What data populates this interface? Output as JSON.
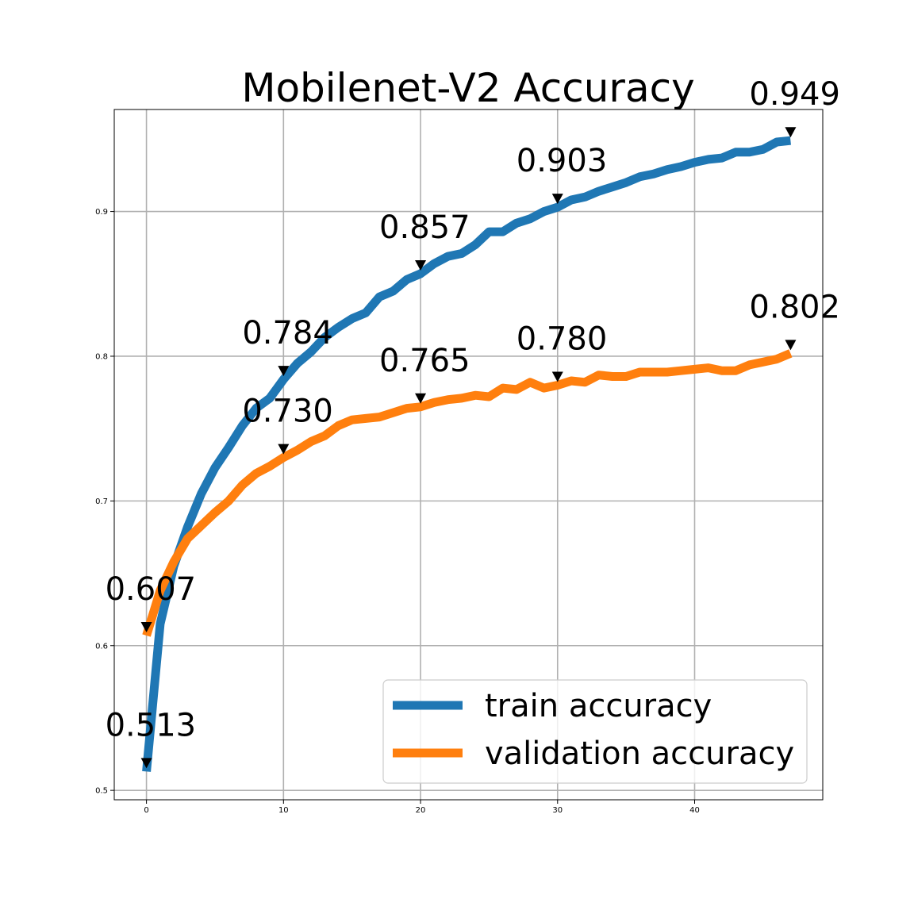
{
  "chart_data": {
    "type": "line",
    "title": "Mobilenet-V2 Accuracy",
    "xlabel": "",
    "ylabel": "",
    "xlim": [
      -2.35,
      49.35
    ],
    "ylim": [
      0.4935,
      0.9705
    ],
    "xticks": [
      0,
      10,
      20,
      30,
      40
    ],
    "xtick_labels": [
      "0",
      "10",
      "20",
      "30",
      "40"
    ],
    "yticks": [
      0.5,
      0.6,
      0.7,
      0.8,
      0.9
    ],
    "ytick_labels": [
      "0.5",
      "0.6",
      "0.7",
      "0.8",
      "0.9"
    ],
    "grid": true,
    "legend_position": "lower-right",
    "x": [
      0,
      1,
      2,
      3,
      4,
      5,
      6,
      7,
      8,
      9,
      10,
      11,
      12,
      13,
      14,
      15,
      16,
      17,
      18,
      19,
      20,
      21,
      22,
      23,
      24,
      25,
      26,
      27,
      28,
      29,
      30,
      31,
      32,
      33,
      34,
      35,
      36,
      37,
      38,
      39,
      40,
      41,
      42,
      43,
      44,
      45,
      46,
      47
    ],
    "series": [
      {
        "name": "train accuracy",
        "color": "#1f77b4",
        "values": [
          0.513,
          0.615,
          0.655,
          0.682,
          0.705,
          0.723,
          0.737,
          0.752,
          0.764,
          0.771,
          0.784,
          0.795,
          0.803,
          0.813,
          0.82,
          0.826,
          0.83,
          0.841,
          0.845,
          0.853,
          0.857,
          0.864,
          0.869,
          0.871,
          0.877,
          0.886,
          0.886,
          0.892,
          0.895,
          0.9,
          0.903,
          0.908,
          0.91,
          0.914,
          0.917,
          0.92,
          0.924,
          0.926,
          0.929,
          0.931,
          0.934,
          0.936,
          0.937,
          0.941,
          0.941,
          0.943,
          0.948,
          0.949
        ]
      },
      {
        "name": "validation accuracy",
        "color": "#ff7f0e",
        "values": [
          0.607,
          0.638,
          0.658,
          0.674,
          0.683,
          0.692,
          0.7,
          0.711,
          0.719,
          0.724,
          0.73,
          0.735,
          0.741,
          0.745,
          0.752,
          0.756,
          0.757,
          0.758,
          0.761,
          0.764,
          0.765,
          0.768,
          0.77,
          0.771,
          0.773,
          0.772,
          0.778,
          0.777,
          0.782,
          0.778,
          0.78,
          0.783,
          0.782,
          0.787,
          0.786,
          0.786,
          0.789,
          0.789,
          0.789,
          0.79,
          0.791,
          0.792,
          0.79,
          0.79,
          0.794,
          0.796,
          0.798,
          0.802
        ]
      }
    ],
    "annotations": [
      {
        "x": 0,
        "y": 0.513,
        "text": "0.513"
      },
      {
        "x": 10,
        "y": 0.784,
        "text": "0.784"
      },
      {
        "x": 20,
        "y": 0.857,
        "text": "0.857"
      },
      {
        "x": 30,
        "y": 0.903,
        "text": "0.903"
      },
      {
        "x": 47,
        "y": 0.949,
        "text": "0.949"
      },
      {
        "x": 0,
        "y": 0.607,
        "text": "0.607"
      },
      {
        "x": 10,
        "y": 0.73,
        "text": "0.730"
      },
      {
        "x": 20,
        "y": 0.765,
        "text": "0.765"
      },
      {
        "x": 30,
        "y": 0.78,
        "text": "0.780"
      },
      {
        "x": 47,
        "y": 0.802,
        "text": "0.802"
      }
    ]
  }
}
